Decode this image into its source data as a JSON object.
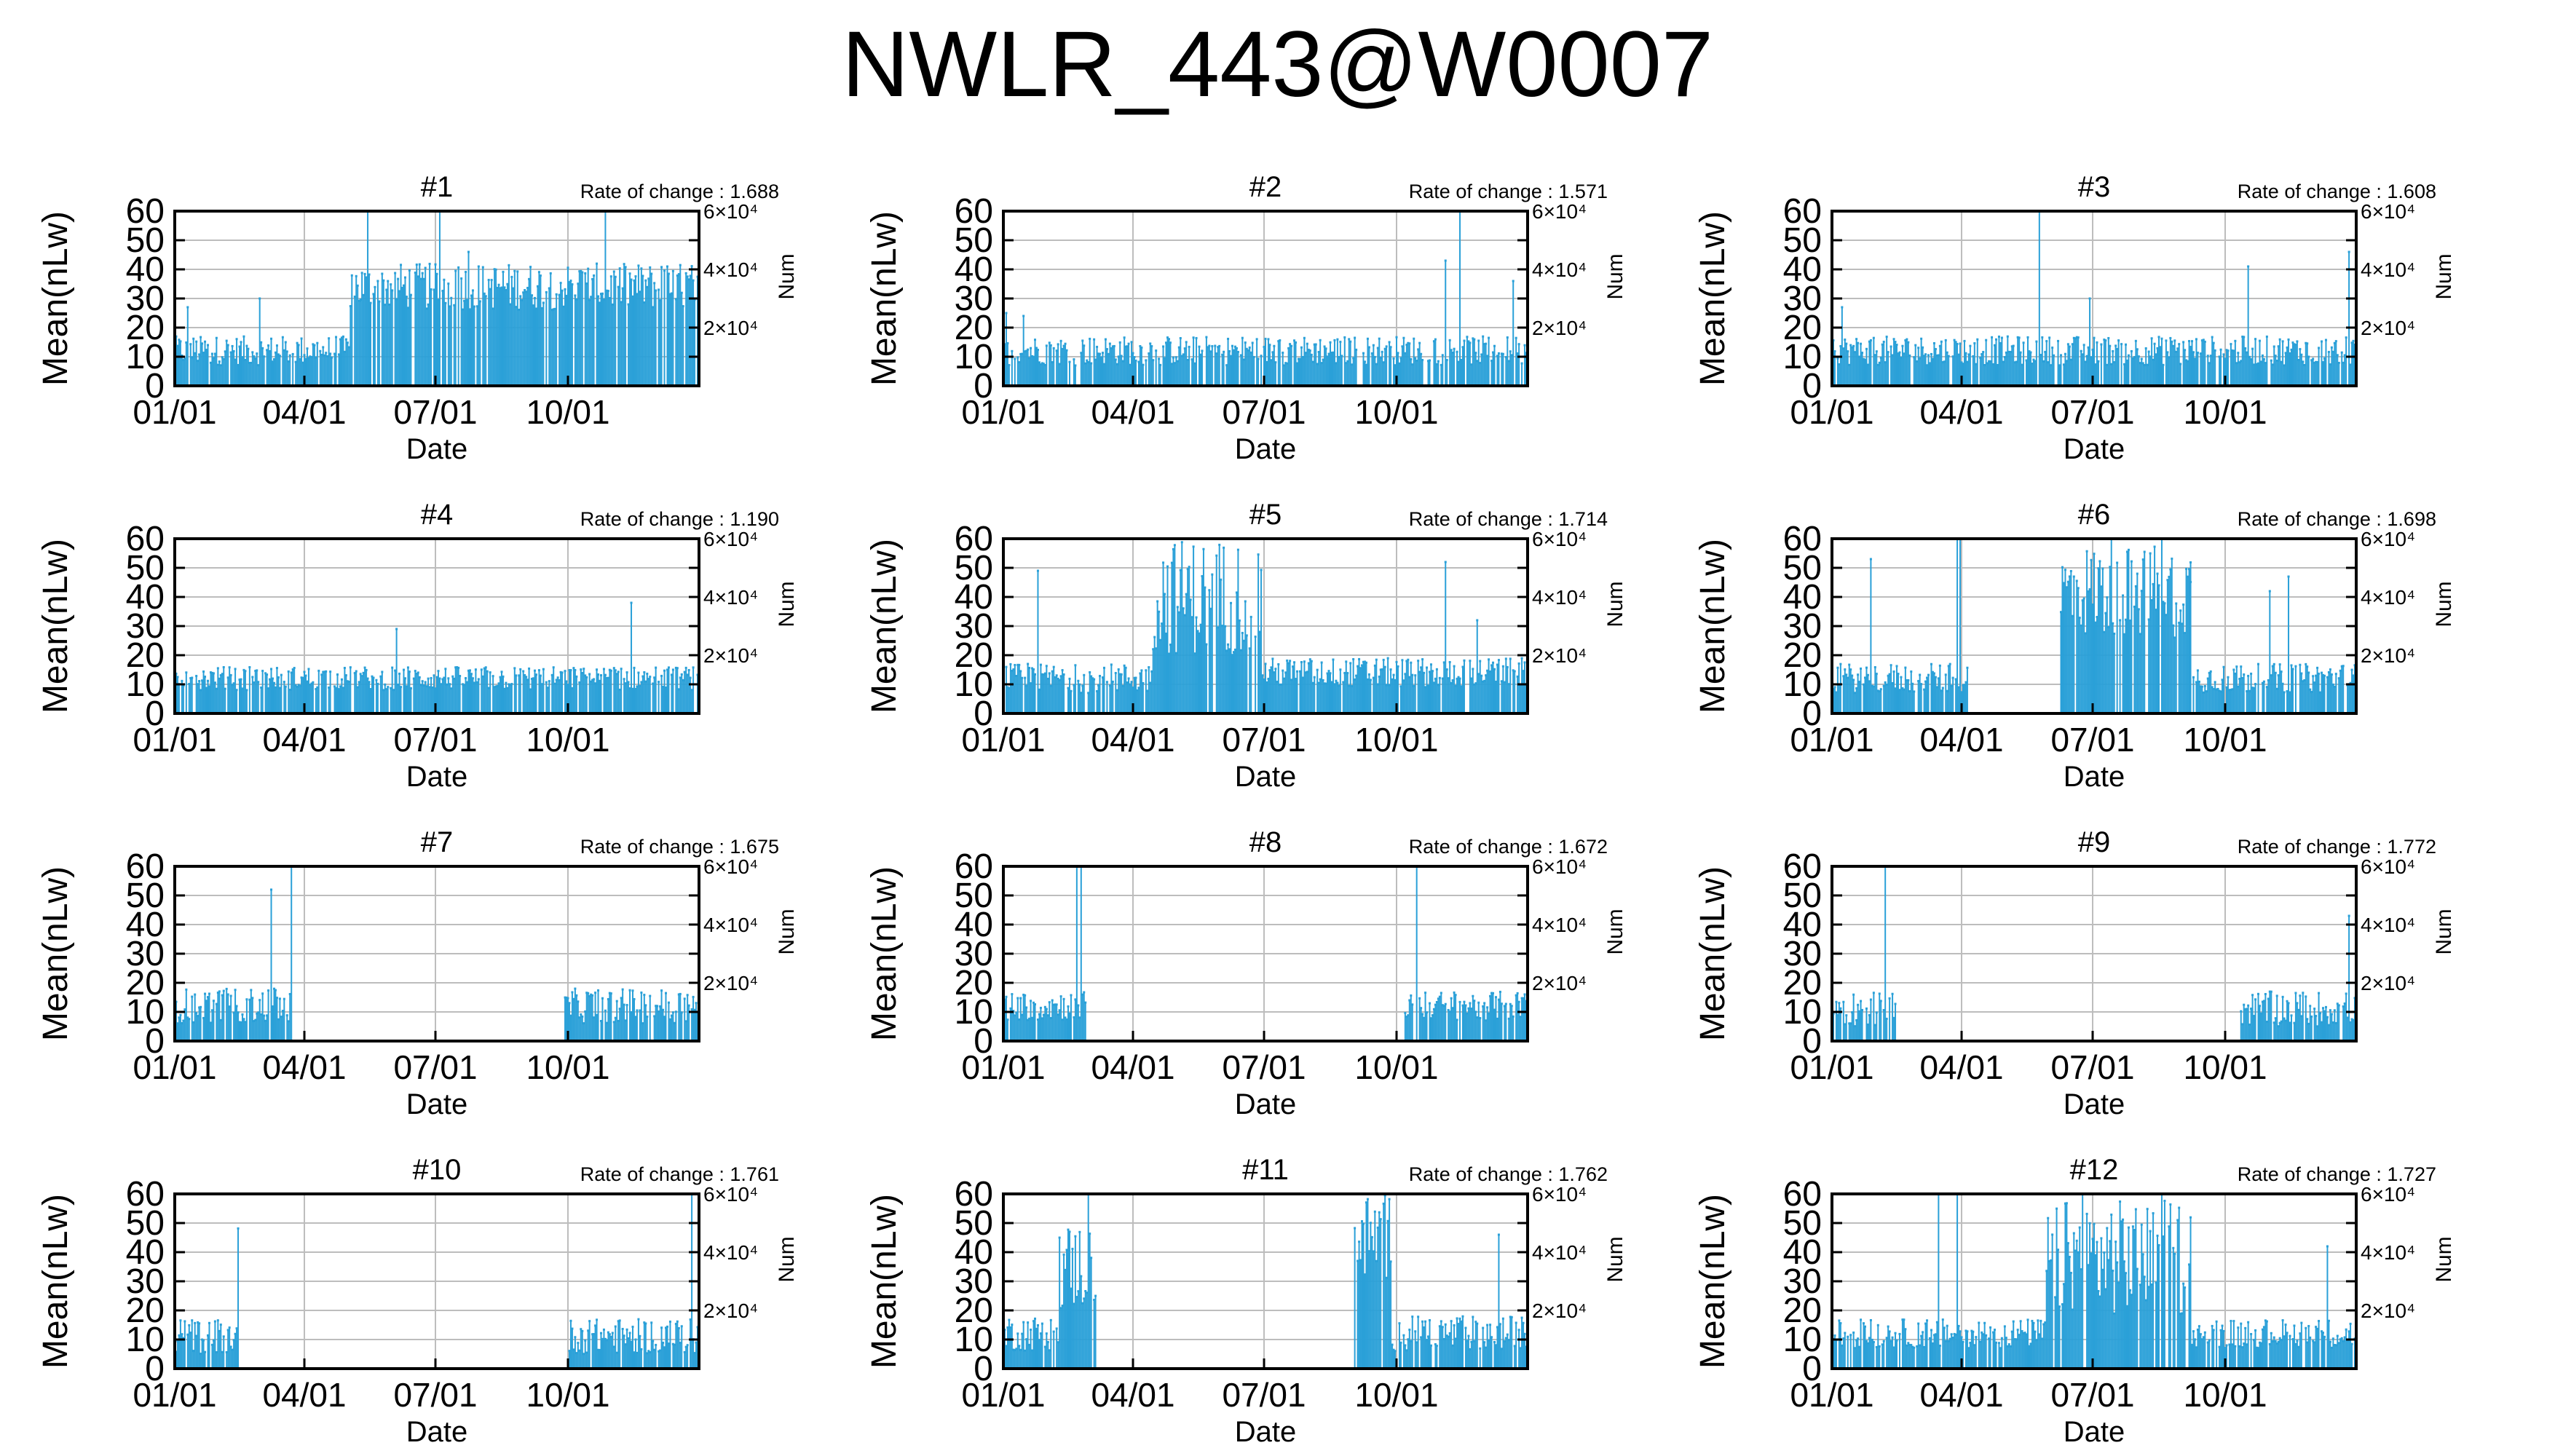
{
  "figure": {
    "title": "NWLR_443@W0007"
  },
  "style": {
    "series_color": "#2aa0d8",
    "grid_color": "#bdbdbd",
    "frame_color": "#000000"
  },
  "chart_data": [
    {
      "title": "#1",
      "annotation": "Rate of change : 1.688",
      "type": "bar",
      "ylabel": "Mean(nLw)",
      "xlabel": "Date",
      "y2label": "Num",
      "ylim": [
        0,
        60
      ],
      "y2lim": [
        0,
        60000
      ],
      "xlim": [
        "01/01",
        "12/31"
      ],
      "grid": true,
      "yticks": [
        "0",
        "10",
        "20",
        "30",
        "40",
        "50",
        "60"
      ],
      "xticks": [
        "01/01",
        "04/01",
        "07/01",
        "10/01"
      ],
      "y2ticks": [
        "2×10⁴",
        "4×10⁴",
        "6×10⁴"
      ],
      "series": [
        {
          "coverage": [
            [
              1,
              365
            ]
          ],
          "base": 12,
          "spread": 5,
          "spikes": [
            [
              10,
              27
            ],
            [
              60,
              30
            ],
            [
              135,
              60
            ],
            [
              185,
              60
            ],
            [
              205,
              46
            ],
            [
              300,
              60
            ]
          ],
          "segments": [
            {
              "start": 1,
              "end": 122,
              "base": 12,
              "spread": 5
            },
            {
              "start": 123,
              "end": 365,
              "base": 34,
              "spread": 8
            }
          ]
        }
      ]
    },
    {
      "title": "#2",
      "annotation": "Rate of change : 1.571",
      "type": "bar",
      "ylabel": "Mean(nLw)",
      "xlabel": "Date",
      "y2label": "Num",
      "ylim": [
        0,
        60
      ],
      "y2lim": [
        0,
        60000
      ],
      "xlim": [
        "01/01",
        "12/31"
      ],
      "grid": true,
      "yticks": [
        "0",
        "10",
        "20",
        "30",
        "40",
        "50",
        "60"
      ],
      "xticks": [
        "01/01",
        "04/01",
        "07/01",
        "10/01"
      ],
      "y2ticks": [
        "2×10⁴",
        "4×10⁴",
        "6×10⁴"
      ],
      "series": [
        {
          "coverage": [
            [
              1,
              365
            ]
          ],
          "base": 12,
          "spread": 5,
          "spikes": [
            [
              3,
              25
            ],
            [
              15,
              24
            ],
            [
              308,
              43
            ],
            [
              318,
              60
            ],
            [
              355,
              36
            ]
          ]
        }
      ]
    },
    {
      "title": "#3",
      "annotation": "Rate of change : 1.608",
      "type": "bar",
      "ylabel": "Mean(nLw)",
      "xlabel": "Date",
      "y2label": "Num",
      "ylim": [
        0,
        60
      ],
      "y2lim": [
        0,
        60000
      ],
      "xlim": [
        "01/01",
        "12/31"
      ],
      "grid": true,
      "yticks": [
        "0",
        "10",
        "20",
        "30",
        "40",
        "50",
        "60"
      ],
      "xticks": [
        "01/01",
        "04/01",
        "07/01",
        "10/01"
      ],
      "y2ticks": [
        "2×10⁴",
        "4×10⁴",
        "6×10⁴"
      ],
      "series": [
        {
          "coverage": [
            [
              1,
              365
            ]
          ],
          "base": 12,
          "spread": 5,
          "spikes": [
            [
              8,
              27
            ],
            [
              145,
              60
            ],
            [
              180,
              30
            ],
            [
              290,
              41
            ],
            [
              360,
              46
            ]
          ]
        }
      ]
    },
    {
      "title": "#4",
      "annotation": "Rate of change : 1.190",
      "type": "bar",
      "ylabel": "Mean(nLw)",
      "xlabel": "Date",
      "y2label": "Num",
      "ylim": [
        0,
        60
      ],
      "y2lim": [
        0,
        60000
      ],
      "xlim": [
        "01/01",
        "12/31"
      ],
      "grid": true,
      "yticks": [
        "0",
        "10",
        "20",
        "30",
        "40",
        "50",
        "60"
      ],
      "xticks": [
        "01/01",
        "04/01",
        "07/01",
        "10/01"
      ],
      "y2ticks": [
        "2×10⁴",
        "4×10⁴",
        "6×10⁴"
      ],
      "series": [
        {
          "coverage": [
            [
              1,
              365
            ]
          ],
          "base": 12,
          "spread": 4,
          "spikes": [
            [
              10,
              27
            ],
            [
              155,
              29
            ],
            [
              305,
              41
            ],
            [
              318,
              38
            ]
          ]
        }
      ]
    },
    {
      "title": "#5",
      "annotation": "Rate of change : 1.714",
      "type": "bar",
      "ylabel": "Mean(nLw)",
      "xlabel": "Date",
      "y2label": "Num",
      "ylim": [
        0,
        60
      ],
      "y2lim": [
        0,
        60000
      ],
      "xlim": [
        "01/01",
        "12/31"
      ],
      "grid": true,
      "yticks": [
        "0",
        "10",
        "20",
        "30",
        "40",
        "50",
        "60"
      ],
      "xticks": [
        "01/01",
        "04/01",
        "07/01",
        "10/01"
      ],
      "y2ticks": [
        "2×10⁴",
        "4×10⁴",
        "6×10⁴"
      ],
      "series": [
        {
          "coverage": [
            [
              1,
              365
            ]
          ],
          "base": 12,
          "spread": 5,
          "spikes": [
            [
              25,
              49
            ],
            [
              308,
              52
            ],
            [
              330,
              32
            ]
          ],
          "segments": [
            {
              "start": 1,
              "end": 104,
              "base": 12,
              "spread": 5
            },
            {
              "start": 105,
              "end": 180,
              "base": 40,
              "spread": 20
            },
            {
              "start": 181,
              "end": 365,
              "base": 14,
              "spread": 5
            }
          ]
        }
      ]
    },
    {
      "title": "#6",
      "annotation": "Rate of change : 1.698",
      "type": "bar",
      "ylabel": "Mean(nLw)",
      "xlabel": "Date",
      "y2label": "Num",
      "ylim": [
        0,
        60
      ],
      "y2lim": [
        0,
        60000
      ],
      "xlim": [
        "01/01",
        "12/31"
      ],
      "grid": true,
      "yticks": [
        "0",
        "10",
        "20",
        "30",
        "40",
        "50",
        "60"
      ],
      "xticks": [
        "01/01",
        "04/01",
        "07/01",
        "10/01"
      ],
      "y2ticks": [
        "2×10⁴",
        "4×10⁴",
        "6×10⁴"
      ],
      "series": [
        {
          "coverage": [
            [
              1,
              95
            ],
            [
              160,
              250
            ],
            [
              250,
              365
            ]
          ],
          "base": 12,
          "spread": 5,
          "spikes": [
            [
              28,
              53
            ],
            [
              88,
              60
            ],
            [
              90,
              60
            ],
            [
              195,
              60
            ],
            [
              230,
              60
            ],
            [
              305,
              42
            ],
            [
              318,
              47
            ]
          ],
          "segments": [
            {
              "start": 160,
              "end": 250,
              "base": 42,
              "spread": 16
            }
          ]
        }
      ]
    },
    {
      "title": "#7",
      "annotation": "Rate of change : 1.675",
      "type": "bar",
      "ylabel": "Mean(nLw)",
      "xlabel": "Date",
      "y2label": "Num",
      "ylim": [
        0,
        60
      ],
      "y2lim": [
        0,
        60000
      ],
      "xlim": [
        "01/01",
        "12/31"
      ],
      "grid": true,
      "yticks": [
        "0",
        "10",
        "20",
        "30",
        "40",
        "50",
        "60"
      ],
      "xticks": [
        "01/01",
        "04/01",
        "07/01",
        "10/01"
      ],
      "y2ticks": [
        "2×10⁴",
        "4×10⁴",
        "6×10⁴"
      ],
      "series": [
        {
          "coverage": [
            [
              1,
              82
            ],
            [
              272,
              365
            ]
          ],
          "base": 12,
          "spread": 6,
          "spikes": [
            [
              68,
              52
            ],
            [
              82,
              60
            ],
            [
              222,
              60
            ],
            [
              242,
              60
            ],
            [
              262,
              60
            ]
          ],
          "segments": [
            {
              "start": 220,
              "end": 270,
              "base": 40,
              "spread": 15
            }
          ]
        }
      ]
    },
    {
      "title": "#8",
      "annotation": "Rate of change : 1.672",
      "type": "bar",
      "ylabel": "Mean(nLw)",
      "xlabel": "Date",
      "y2label": "Num",
      "ylim": [
        0,
        60
      ],
      "y2lim": [
        0,
        60000
      ],
      "xlim": [
        "01/01",
        "12/31"
      ],
      "grid": true,
      "yticks": [
        "0",
        "10",
        "20",
        "30",
        "40",
        "50",
        "60"
      ],
      "xticks": [
        "01/01",
        "04/01",
        "07/01",
        "10/01"
      ],
      "y2ticks": [
        "2×10⁴",
        "4×10⁴",
        "6×10⁴"
      ],
      "series": [
        {
          "coverage": [
            [
              1,
              58
            ],
            [
              280,
              365
            ]
          ],
          "base": 12,
          "spread": 5,
          "spikes": [
            [
              52,
              60
            ],
            [
              55,
              60
            ],
            [
              272,
              60
            ],
            [
              288,
              60
            ]
          ]
        }
      ]
    },
    {
      "title": "#9",
      "annotation": "Rate of change : 1.772",
      "type": "bar",
      "ylabel": "Mean(nLw)",
      "xlabel": "Date",
      "y2label": "Num",
      "ylim": [
        0,
        60
      ],
      "y2lim": [
        0,
        60000
      ],
      "xlim": [
        "01/01",
        "12/31"
      ],
      "grid": true,
      "yticks": [
        "0",
        "10",
        "20",
        "30",
        "40",
        "50",
        "60"
      ],
      "xticks": [
        "01/01",
        "04/01",
        "07/01",
        "10/01"
      ],
      "y2ticks": [
        "2×10⁴",
        "4×10⁴",
        "6×10⁴"
      ],
      "series": [
        {
          "coverage": [
            [
              1,
              45
            ],
            [
              285,
              365
            ]
          ],
          "base": 11,
          "spread": 6,
          "spikes": [
            [
              38,
              60
            ],
            [
              55,
              40
            ],
            [
              275,
              55
            ],
            [
              360,
              43
            ]
          ]
        }
      ]
    },
    {
      "title": "#10",
      "annotation": "Rate of change : 1.761",
      "type": "bar",
      "ylabel": "Mean(nLw)",
      "xlabel": "Date",
      "y2label": "Num",
      "ylim": [
        0,
        60
      ],
      "y2lim": [
        0,
        60000
      ],
      "xlim": [
        "01/01",
        "12/31"
      ],
      "grid": true,
      "yticks": [
        "0",
        "10",
        "20",
        "30",
        "40",
        "50",
        "60"
      ],
      "xticks": [
        "01/01",
        "04/01",
        "07/01",
        "10/01"
      ],
      "y2ticks": [
        "2×10⁴",
        "4×10⁴",
        "6×10⁴"
      ],
      "series": [
        {
          "coverage": [
            [
              1,
              45
            ],
            [
              275,
              365
            ]
          ],
          "base": 11,
          "spread": 6,
          "spikes": [
            [
              50,
              60
            ],
            [
              58,
              60
            ],
            [
              65,
              55
            ],
            [
              360,
              60
            ]
          ],
          "segments": [
            {
              "start": 45,
              "end": 75,
              "base": 45,
              "spread": 15
            }
          ]
        }
      ]
    },
    {
      "title": "#11",
      "annotation": "Rate of change : 1.762",
      "type": "bar",
      "ylabel": "Mean(nLw)",
      "xlabel": "Date",
      "y2label": "Num",
      "ylim": [
        0,
        60
      ],
      "y2lim": [
        0,
        60000
      ],
      "xlim": [
        "01/01",
        "12/31"
      ],
      "grid": true,
      "yticks": [
        "0",
        "10",
        "20",
        "30",
        "40",
        "50",
        "60"
      ],
      "xticks": [
        "01/01",
        "04/01",
        "07/01",
        "10/01"
      ],
      "y2ticks": [
        "2×10⁴",
        "4×10⁴",
        "6×10⁴"
      ],
      "series": [
        {
          "coverage": [
            [
              1,
              65
            ],
            [
              245,
              365
            ]
          ],
          "base": 12,
          "spread": 6,
          "spikes": [
            [
              60,
              60
            ],
            [
              90,
              60
            ],
            [
              185,
              60
            ],
            [
              220,
              60
            ],
            [
              345,
              46
            ]
          ],
          "segments": [
            {
              "start": 40,
              "end": 65,
              "base": 35,
              "spread": 15
            },
            {
              "start": 245,
              "end": 270,
              "base": 45,
              "spread": 15
            }
          ]
        }
      ]
    },
    {
      "title": "#12",
      "annotation": "Rate of change : 1.727",
      "type": "bar",
      "ylabel": "Mean(nLw)",
      "xlabel": "Date",
      "y2label": "Num",
      "ylim": [
        0,
        60
      ],
      "y2lim": [
        0,
        60000
      ],
      "xlim": [
        "01/01",
        "12/31"
      ],
      "grid": true,
      "yticks": [
        "0",
        "10",
        "20",
        "30",
        "40",
        "50",
        "60"
      ],
      "xticks": [
        "01/01",
        "04/01",
        "07/01",
        "10/01"
      ],
      "y2ticks": [
        "2×10⁴",
        "4×10⁴",
        "6×10⁴"
      ],
      "series": [
        {
          "coverage": [
            [
              1,
              365
            ]
          ],
          "base": 12,
          "spread": 5,
          "spikes": [
            [
              75,
              60
            ],
            [
              88,
              60
            ],
            [
              155,
              60
            ],
            [
              175,
              60
            ],
            [
              230,
              60
            ],
            [
              345,
              42
            ]
          ],
          "segments": [
            {
              "start": 150,
              "end": 250,
              "base": 38,
              "spread": 20
            }
          ]
        }
      ]
    }
  ]
}
